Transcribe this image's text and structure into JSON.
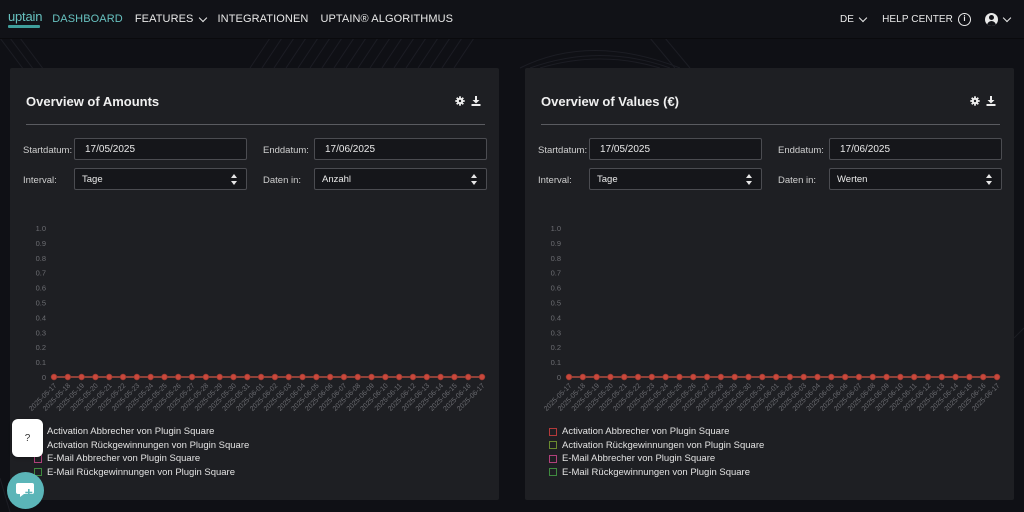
{
  "nav": {
    "logo": "uptain",
    "items": [
      {
        "label": "DASHBOARD",
        "active": true
      },
      {
        "label": "FEATURES",
        "has_dropdown": true
      },
      {
        "label": "INTEGRATIONEN"
      },
      {
        "label": "UPTAIN® ALGORITHMUS"
      }
    ],
    "language": "DE",
    "help_center": "HELP CENTER",
    "accent_color": "#67c1bf"
  },
  "panels": [
    {
      "title": "Overview of Amounts",
      "start_label": "Startdatum:",
      "start_value": "17/05/2025",
      "end_label": "Enddatum:",
      "end_value": "17/06/2025",
      "interval_label": "Interval:",
      "interval_value": "Tage",
      "data_in_label": "Daten in:",
      "data_in_value": "Anzahl"
    },
    {
      "title": "Overview of Values (€)",
      "start_label": "Startdatum:",
      "start_value": "17/05/2025",
      "end_label": "Enddatum:",
      "end_value": "17/06/2025",
      "interval_label": "Interval:",
      "interval_value": "Tage",
      "data_in_label": "Daten in:",
      "data_in_value": "Werten"
    }
  ],
  "legend": [
    {
      "label": "Activation Abbrecher von Plugin Square",
      "color": "#b33a3a"
    },
    {
      "label": "Activation Rückgewinnungen von Plugin Square",
      "color": "#6a8a2f"
    },
    {
      "label": "E-Mail Abbrecher von Plugin Square",
      "color": "#b0407a"
    },
    {
      "label": "E-Mail Rückgewinnungen von Plugin Square",
      "color": "#3f8a3f"
    }
  ],
  "chart_data": [
    {
      "type": "line",
      "title": "Overview of Amounts",
      "xlabel": "",
      "ylabel": "",
      "ylim": [
        0,
        1.0
      ],
      "y_ticks": [
        "0",
        "0.1",
        "0.2",
        "0.3",
        "0.4",
        "0.5",
        "0.6",
        "0.7",
        "0.8",
        "0.9",
        "1.0"
      ],
      "grid": false,
      "legend_position": "bottom",
      "x": [
        "2025-05-17",
        "2025-05-18",
        "2025-05-19",
        "2025-05-20",
        "2025-05-21",
        "2025-05-22",
        "2025-05-23",
        "2025-05-24",
        "2025-05-25",
        "2025-05-26",
        "2025-05-27",
        "2025-05-28",
        "2025-05-29",
        "2025-05-30",
        "2025-05-31",
        "2025-06-01",
        "2025-06-02",
        "2025-06-03",
        "2025-06-04",
        "2025-06-05",
        "2025-06-06",
        "2025-06-07",
        "2025-06-08",
        "2025-06-09",
        "2025-06-10",
        "2025-06-11",
        "2025-06-12",
        "2025-06-13",
        "2025-06-14",
        "2025-06-15",
        "2025-06-16",
        "2025-06-17"
      ],
      "series": [
        {
          "name": "Activation Abbrecher von Plugin Square",
          "values": [
            0,
            0,
            0,
            0,
            0,
            0,
            0,
            0,
            0,
            0,
            0,
            0,
            0,
            0,
            0,
            0,
            0,
            0,
            0,
            0,
            0,
            0,
            0,
            0,
            0,
            0,
            0,
            0,
            0,
            0,
            0,
            0
          ]
        },
        {
          "name": "Activation Rückgewinnungen von Plugin Square",
          "values": [
            0,
            0,
            0,
            0,
            0,
            0,
            0,
            0,
            0,
            0,
            0,
            0,
            0,
            0,
            0,
            0,
            0,
            0,
            0,
            0,
            0,
            0,
            0,
            0,
            0,
            0,
            0,
            0,
            0,
            0,
            0,
            0
          ]
        },
        {
          "name": "E-Mail Abbrecher von Plugin Square",
          "values": [
            0,
            0,
            0,
            0,
            0,
            0,
            0,
            0,
            0,
            0,
            0,
            0,
            0,
            0,
            0,
            0,
            0,
            0,
            0,
            0,
            0,
            0,
            0,
            0,
            0,
            0,
            0,
            0,
            0,
            0,
            0,
            0
          ]
        },
        {
          "name": "E-Mail Rückgewinnungen von Plugin Square",
          "values": [
            0,
            0,
            0,
            0,
            0,
            0,
            0,
            0,
            0,
            0,
            0,
            0,
            0,
            0,
            0,
            0,
            0,
            0,
            0,
            0,
            0,
            0,
            0,
            0,
            0,
            0,
            0,
            0,
            0,
            0,
            0,
            0
          ]
        }
      ]
    },
    {
      "type": "line",
      "title": "Overview of Values (€)",
      "xlabel": "",
      "ylabel": "",
      "ylim": [
        0,
        1.0
      ],
      "y_ticks": [
        "0",
        "0.1",
        "0.2",
        "0.3",
        "0.4",
        "0.5",
        "0.6",
        "0.7",
        "0.8",
        "0.9",
        "1.0"
      ],
      "grid": false,
      "legend_position": "bottom",
      "x": [
        "2025-05-17",
        "2025-05-18",
        "2025-05-19",
        "2025-05-20",
        "2025-05-21",
        "2025-05-22",
        "2025-05-23",
        "2025-05-24",
        "2025-05-25",
        "2025-05-26",
        "2025-05-27",
        "2025-05-28",
        "2025-05-29",
        "2025-05-30",
        "2025-05-31",
        "2025-06-01",
        "2025-06-02",
        "2025-06-03",
        "2025-06-04",
        "2025-06-05",
        "2025-06-06",
        "2025-06-07",
        "2025-06-08",
        "2025-06-09",
        "2025-06-10",
        "2025-06-11",
        "2025-06-12",
        "2025-06-13",
        "2025-06-14",
        "2025-06-15",
        "2025-06-16",
        "2025-06-17"
      ],
      "series": [
        {
          "name": "Activation Abbrecher von Plugin Square",
          "values": [
            0,
            0,
            0,
            0,
            0,
            0,
            0,
            0,
            0,
            0,
            0,
            0,
            0,
            0,
            0,
            0,
            0,
            0,
            0,
            0,
            0,
            0,
            0,
            0,
            0,
            0,
            0,
            0,
            0,
            0,
            0,
            0
          ]
        },
        {
          "name": "Activation Rückgewinnungen von Plugin Square",
          "values": [
            0,
            0,
            0,
            0,
            0,
            0,
            0,
            0,
            0,
            0,
            0,
            0,
            0,
            0,
            0,
            0,
            0,
            0,
            0,
            0,
            0,
            0,
            0,
            0,
            0,
            0,
            0,
            0,
            0,
            0,
            0,
            0
          ]
        },
        {
          "name": "E-Mail Abbrecher von Plugin Square",
          "values": [
            0,
            0,
            0,
            0,
            0,
            0,
            0,
            0,
            0,
            0,
            0,
            0,
            0,
            0,
            0,
            0,
            0,
            0,
            0,
            0,
            0,
            0,
            0,
            0,
            0,
            0,
            0,
            0,
            0,
            0,
            0,
            0
          ]
        },
        {
          "name": "E-Mail Rückgewinnungen von Plugin Square",
          "values": [
            0,
            0,
            0,
            0,
            0,
            0,
            0,
            0,
            0,
            0,
            0,
            0,
            0,
            0,
            0,
            0,
            0,
            0,
            0,
            0,
            0,
            0,
            0,
            0,
            0,
            0,
            0,
            0,
            0,
            0,
            0,
            0
          ]
        }
      ]
    }
  ],
  "widgets": {
    "help_bubble": "?"
  }
}
